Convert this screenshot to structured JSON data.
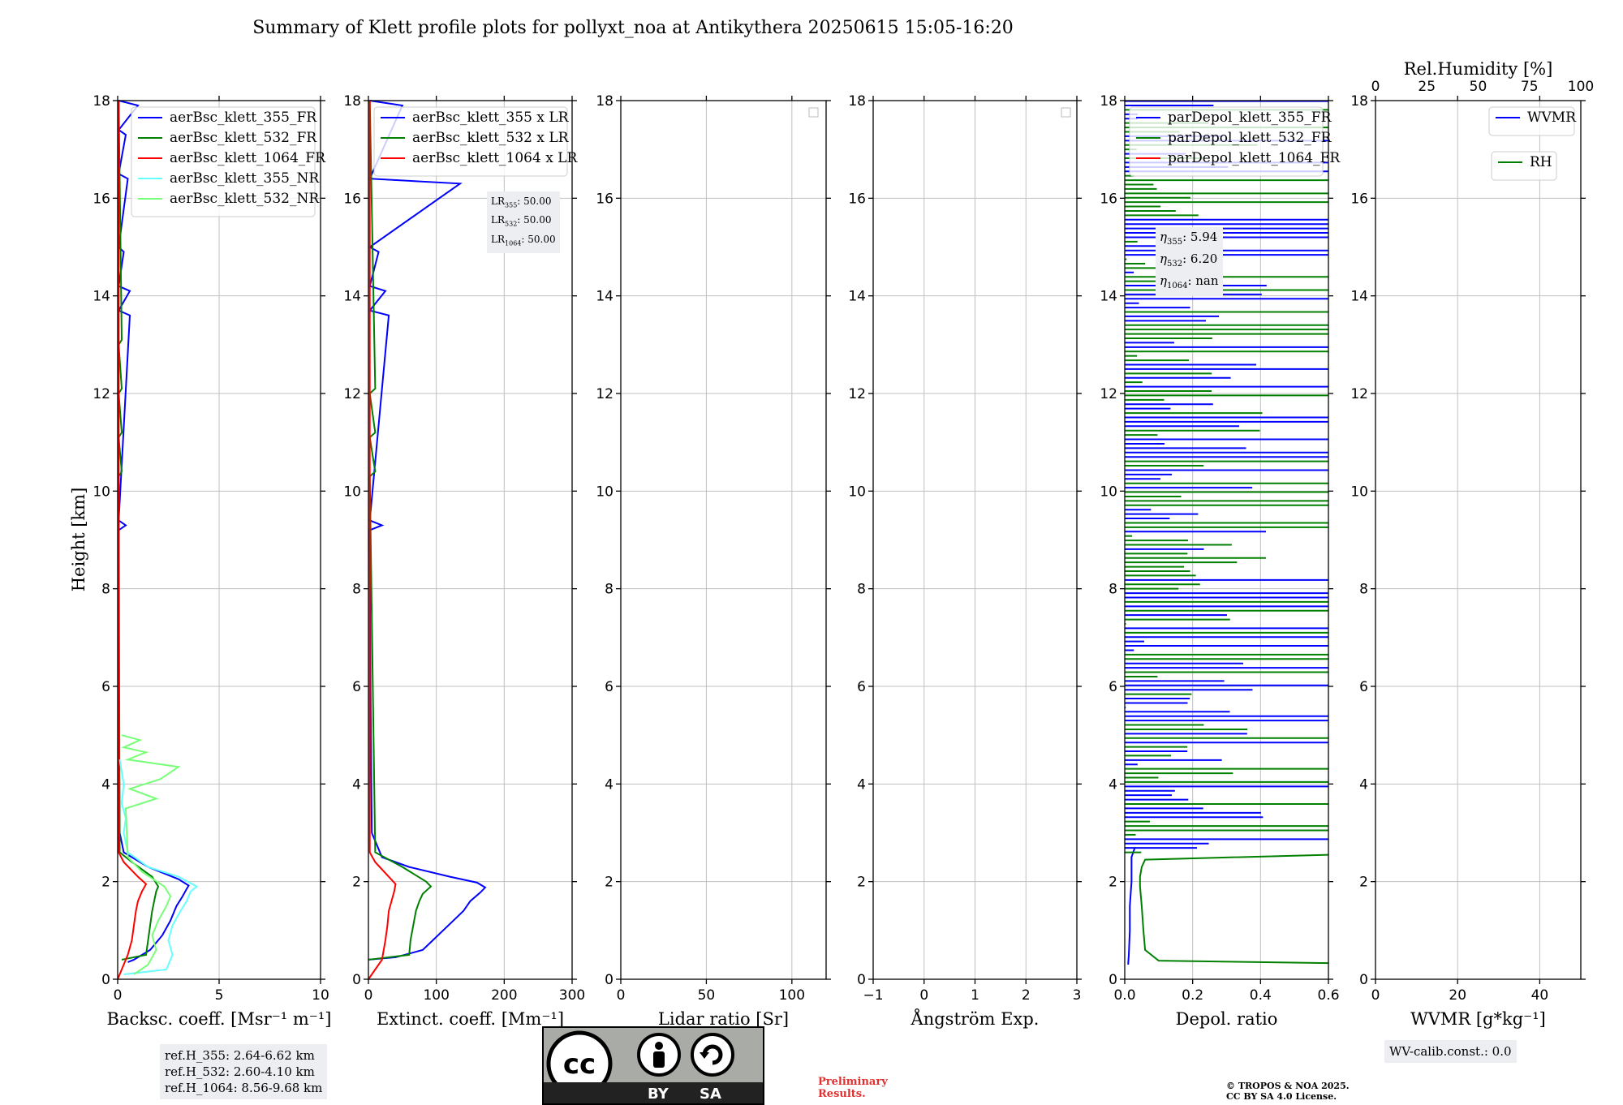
{
  "title": "Summary of Klett profile plots for pollyxt_noa at Antikythera 20250615 15:05-16:20",
  "panels": [
    {
      "xlabel": "Backsc. coeff. [Msr$^{-1}$ m$^{-1}$]",
      "xlabel_text": "Backsc. coeff. [Msr⁻¹ m⁻¹]",
      "xlim": [
        0,
        10
      ],
      "xticks": [
        "0",
        "5",
        "10"
      ]
    },
    {
      "xlabel_text": "Extinct. coeff. [Mm⁻¹]",
      "xlim": [
        0,
        300
      ],
      "xticks": [
        "0",
        "100",
        "200",
        "300"
      ]
    },
    {
      "xlabel_text": "Lidar ratio [Sr]",
      "xlim": [
        0,
        120
      ],
      "xticks": [
        "0",
        "50",
        "100"
      ]
    },
    {
      "xlabel_text": "Ångström Exp.",
      "xlim": [
        -1,
        3
      ],
      "xticks": [
        "−1",
        "0",
        "1",
        "2",
        "3"
      ]
    },
    {
      "xlabel_text": "Depol. ratio",
      "xlim": [
        0,
        0.6
      ],
      "xticks": [
        "0.0",
        "0.2",
        "0.4",
        "0.6"
      ]
    },
    {
      "xlabel_text": "WVMR [g*kg⁻¹]",
      "xlim": [
        0,
        50
      ],
      "xticks": [
        "0",
        "20",
        "40"
      ],
      "top_label": "Rel.Humidity [%]",
      "top_ticks": [
        "0",
        "25",
        "50",
        "75",
        "100"
      ]
    }
  ],
  "ylabel": "Height [km]",
  "yticks": [
    "0",
    "2",
    "4",
    "6",
    "8",
    "10",
    "12",
    "14",
    "16",
    "18"
  ],
  "legends": {
    "backscatter": [
      "aerBsc_klett_355_FR",
      "aerBsc_klett_532_FR",
      "aerBsc_klett_1064_FR",
      "aerBsc_klett_355_NR",
      "aerBsc_klett_532_NR"
    ],
    "extinction": [
      "aerBsc_klett_355 x LR",
      "aerBsc_klett_532 x LR",
      "aerBsc_klett_1064 x LR"
    ],
    "depol": [
      "parDepol_klett_355_FR",
      "parDepol_klett_532_FR",
      "parDepol_klett_1064_FR"
    ],
    "wv": [
      "WVMR",
      "RH"
    ]
  },
  "lr_box": [
    "LR",
    "355",
    ": 50.00",
    "LR",
    "532",
    ": 50.00",
    "LR",
    "1064",
    ": 50.00"
  ],
  "lr_lines": [
    {
      "sub": "355",
      "val": ": 50.00"
    },
    {
      "sub": "532",
      "val": ": 50.00"
    },
    {
      "sub": "1064",
      "val": ": 50.00"
    }
  ],
  "eta_lines": [
    {
      "sub": "355",
      "val": ": 5.94"
    },
    {
      "sub": "532",
      "val": ": 6.20"
    },
    {
      "sub": "1064",
      "val": ": nan"
    }
  ],
  "refH": [
    "ref.H_355: 2.64-6.62 km",
    "ref.H_532: 2.60-4.10 km",
    "ref.H_1064: 8.56-9.68 km"
  ],
  "wv_calib": "WV-calib.const.: 0.0",
  "cc": {
    "by": "BY",
    "sa": "SA"
  },
  "prelim": [
    "Preliminary",
    "Results."
  ],
  "copyright": [
    "© TROPOS & NOA 2025.",
    "CC BY SA 4.0 License."
  ],
  "colors": {
    "c355": "#0000ff",
    "c532": "#008000",
    "c1064": "#ff0000",
    "c355nr": "#66ffff",
    "c532nr": "#77ff77",
    "grid": "#c0c0c0"
  },
  "chart_data": [
    {
      "type": "line",
      "title": "",
      "xlabel": "Backsc. coeff. [Msr⁻¹ m⁻¹]",
      "ylabel": "Height [km]",
      "xlim": [
        0,
        10
      ],
      "ylim": [
        0,
        18
      ],
      "grid": true,
      "legend": "top-right",
      "series": [
        {
          "name": "aerBsc_klett_355_FR",
          "color": "#0000ff",
          "x": [
            0.5,
            0.8,
            1.6,
            2.2,
            2.6,
            2.9,
            3.2,
            3.4,
            3.5,
            3.0,
            1.5,
            0.3,
            0.1,
            0.05,
            0.05,
            0.4,
            0.05,
            0.6,
            0.05,
            0.6,
            0.05,
            0.3,
            0.05,
            0.5,
            0.05,
            0.4,
            0.05,
            1.0,
            0.05
          ],
          "y": [
            0.35,
            0.4,
            0.6,
            0.9,
            1.2,
            1.5,
            1.7,
            1.85,
            1.92,
            2.05,
            2.3,
            2.6,
            3.0,
            6.0,
            9.2,
            9.3,
            9.4,
            13.6,
            13.7,
            14.1,
            14.2,
            14.9,
            15.0,
            16.4,
            16.5,
            17.3,
            17.4,
            17.9,
            18.0
          ]
        },
        {
          "name": "aerBsc_klett_532_FR",
          "color": "#008000",
          "x": [
            0.2,
            1.4,
            1.5,
            1.6,
            1.7,
            1.8,
            1.9,
            2.0,
            1.7,
            0.7,
            0.1,
            0.05,
            0.2,
            0.05,
            0.2,
            0.05,
            0.2,
            0.05,
            0.2,
            0.05
          ],
          "y": [
            0.4,
            0.5,
            0.8,
            1.1,
            1.4,
            1.6,
            1.8,
            1.9,
            2.1,
            2.4,
            2.6,
            10.3,
            10.4,
            11.1,
            11.2,
            12.0,
            12.1,
            13.0,
            13.1,
            18.0
          ]
        },
        {
          "name": "aerBsc_klett_1064_FR",
          "color": "#ff0000",
          "x": [
            0.0,
            0.5,
            0.7,
            0.8,
            0.9,
            1.0,
            1.2,
            1.4,
            1.0,
            0.3,
            0.05,
            0.05
          ],
          "y": [
            0.0,
            0.5,
            0.8,
            1.1,
            1.4,
            1.6,
            1.8,
            1.95,
            2.1,
            2.4,
            2.6,
            18.0
          ]
        },
        {
          "name": "aerBsc_klett_355_NR",
          "color": "#66ffff",
          "x": [
            0.3,
            2.4,
            2.7,
            2.5,
            2.7,
            3.1,
            3.4,
            3.6,
            3.9,
            3.0,
            1.5,
            0.5,
            0.3,
            0.4,
            0.2,
            0.3,
            0.1
          ],
          "y": [
            0.1,
            0.2,
            0.5,
            0.8,
            1.1,
            1.4,
            1.6,
            1.8,
            1.9,
            2.1,
            2.3,
            2.6,
            3.0,
            3.3,
            3.6,
            4.0,
            4.5
          ]
        },
        {
          "name": "aerBsc_klett_532_NR",
          "color": "#77ff77",
          "x": [
            0.8,
            1.5,
            1.9,
            1.7,
            2.0,
            2.4,
            2.6,
            2.3,
            1.2,
            0.5,
            0.4,
            1.9,
            0.6,
            2.1,
            3.0,
            0.5,
            1.4,
            0.3,
            1.1,
            0.2
          ],
          "y": [
            0.1,
            0.3,
            0.6,
            0.9,
            1.2,
            1.5,
            1.7,
            1.9,
            2.2,
            2.5,
            3.5,
            3.7,
            3.9,
            4.1,
            4.35,
            4.5,
            4.65,
            4.75,
            4.9,
            5.0
          ]
        }
      ]
    },
    {
      "type": "line",
      "title": "",
      "xlabel": "Extinct. coeff. [Mm⁻¹]",
      "ylabel": "",
      "xlim": [
        0,
        300
      ],
      "ylim": [
        0,
        18
      ],
      "grid": true,
      "legend": "top-right",
      "series": [
        {
          "name": "aerBsc_klett_355 x LR",
          "color": "#0000ff",
          "x": [
            0,
            40,
            80,
            95,
            110,
            125,
            140,
            150,
            165,
            172,
            160,
            120,
            60,
            20,
            5,
            3,
            2,
            20,
            2,
            30,
            2,
            25,
            2,
            15,
            2,
            135,
            2,
            50,
            2
          ],
          "y": [
            0.4,
            0.45,
            0.6,
            0.8,
            1.0,
            1.2,
            1.4,
            1.6,
            1.78,
            1.88,
            1.98,
            2.1,
            2.3,
            2.5,
            3.0,
            6.0,
            9.2,
            9.3,
            9.4,
            13.6,
            13.7,
            14.1,
            14.2,
            14.9,
            15.0,
            16.3,
            16.4,
            17.9,
            18.0
          ]
        },
        {
          "name": "aerBsc_klett_532 x LR",
          "color": "#008000",
          "x": [
            0,
            60,
            62,
            66,
            70,
            75,
            80,
            88,
            92,
            85,
            50,
            10,
            2,
            10,
            2,
            10,
            2,
            10,
            2
          ],
          "y": [
            0.4,
            0.5,
            0.8,
            1.1,
            1.4,
            1.6,
            1.75,
            1.85,
            1.9,
            2.0,
            2.3,
            2.6,
            10.3,
            10.4,
            11.1,
            11.2,
            12.0,
            12.1,
            18.0
          ]
        },
        {
          "name": "aerBsc_klett_1064 x LR",
          "color": "#ff0000",
          "x": [
            0,
            20,
            25,
            28,
            30,
            34,
            38,
            40,
            30,
            10,
            2,
            2
          ],
          "y": [
            0.0,
            0.4,
            0.8,
            1.1,
            1.4,
            1.6,
            1.8,
            1.95,
            2.1,
            2.4,
            2.6,
            18.0
          ]
        }
      ]
    },
    {
      "type": "line",
      "title": "",
      "xlabel": "Lidar ratio [Sr]",
      "ylabel": "",
      "xlim": [
        0,
        120
      ],
      "ylim": [
        0,
        18
      ],
      "grid": true,
      "legend": "top-right",
      "series": []
    },
    {
      "type": "line",
      "title": "",
      "xlabel": "Ångström Exp.",
      "ylabel": "",
      "xlim": [
        -1,
        3
      ],
      "ylim": [
        0,
        18
      ],
      "grid": true,
      "legend": "top-right",
      "series": []
    },
    {
      "type": "line",
      "title": "",
      "xlabel": "Depol. ratio",
      "ylabel": "",
      "xlim": [
        0,
        0.6
      ],
      "ylim": [
        0,
        18
      ],
      "grid": true,
      "legend": "top-left",
      "series": [
        {
          "name": "parDepol_klett_355_FR",
          "color": "#0000ff",
          "x": [
            0.01,
            0.012,
            0.015,
            0.015,
            0.02,
            0.02,
            0.03
          ],
          "y": [
            0.3,
            0.5,
            1.0,
            1.5,
            2.0,
            2.5,
            2.7
          ]
        },
        {
          "name": "parDepol_klett_532_FR",
          "color": "#008000",
          "x": [
            0.6,
            0.1,
            0.06,
            0.055,
            0.05,
            0.045,
            0.045,
            0.05,
            0.06,
            0.6
          ],
          "y": [
            0.33,
            0.38,
            0.6,
            1.0,
            1.5,
            1.9,
            2.1,
            2.3,
            2.45,
            2.55
          ]
        },
        {
          "name": "parDepol_klett_1064_FR",
          "color": "#ff0000",
          "x": [],
          "y": []
        }
      ]
    },
    {
      "type": "line",
      "title": "",
      "xlabel": "WVMR [g*kg⁻¹]",
      "ylabel": "",
      "xlim": [
        0,
        50
      ],
      "ylim": [
        0,
        18
      ],
      "grid": true,
      "legend": "top-right",
      "series": [
        {
          "name": "WVMR",
          "color": "#0000ff",
          "x": [],
          "y": []
        },
        {
          "name": "RH",
          "color": "#008000",
          "x": [],
          "y": []
        }
      ]
    }
  ]
}
